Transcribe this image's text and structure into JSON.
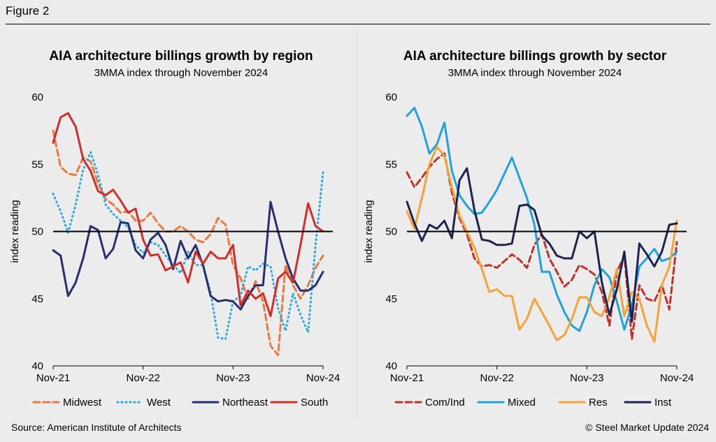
{
  "figure_label": "Figure 2",
  "source": "Source: American Institute of Architects",
  "copyright": "© Steel Market Update 2024",
  "colors": {
    "background": "#ececec",
    "zero_line": "#000000"
  },
  "chart_data": [
    {
      "type": "line",
      "title": "AIA architecture billings growth by region",
      "subtitle": "3MMA index through November 2024",
      "ylabel": "index reading",
      "ylim": [
        40,
        60
      ],
      "yticks": [
        40,
        45,
        50,
        55,
        60
      ],
      "x": [
        "Nov-21",
        "Dec-21",
        "Jan-22",
        "Feb-22",
        "Mar-22",
        "Apr-22",
        "May-22",
        "Jun-22",
        "Jul-22",
        "Aug-22",
        "Sep-22",
        "Oct-22",
        "Nov-22",
        "Dec-22",
        "Jan-23",
        "Feb-23",
        "Mar-23",
        "Apr-23",
        "May-23",
        "Jun-23",
        "Jul-23",
        "Aug-23",
        "Sep-23",
        "Oct-23",
        "Nov-23",
        "Dec-23",
        "Jan-24",
        "Feb-24",
        "Mar-24",
        "Apr-24",
        "May-24",
        "Jun-24",
        "Jul-24",
        "Aug-24",
        "Sep-24",
        "Oct-24",
        "Nov-24"
      ],
      "xtick_labels": [
        "Nov-21",
        "Nov-22",
        "Nov-23",
        "Nov-24"
      ],
      "reference_line": 50,
      "legend_position": "bottom",
      "series": [
        {
          "name": "Midwest",
          "color": "#e87a3c",
          "dash": "dashed",
          "values": [
            57.5,
            54.8,
            54.3,
            54.2,
            55.5,
            55.2,
            53.6,
            52.4,
            52.0,
            51.4,
            51.5,
            50.8,
            50.8,
            51.4,
            50.6,
            50.0,
            50.0,
            50.4,
            50.0,
            49.4,
            49.2,
            49.8,
            51.0,
            50.5,
            47.5,
            46.5,
            45.0,
            46.3,
            44.8,
            41.5,
            40.8,
            47.5,
            46.0,
            45.0,
            46.0,
            47.3,
            48.2
          ]
        },
        {
          "name": "West",
          "color": "#2aa7de",
          "dash": "dotted",
          "values": [
            52.8,
            51.5,
            49.9,
            52.0,
            54.6,
            55.9,
            54.2,
            52.0,
            51.3,
            50.8,
            50.3,
            49.0,
            48.4,
            49.2,
            49.0,
            48.2,
            47.5,
            46.9,
            48.5,
            47.5,
            47.5,
            45.5,
            42.1,
            42.0,
            44.8,
            45.2,
            47.4,
            47.1,
            47.6,
            47.4,
            44.3,
            42.6,
            45.4,
            43.8,
            42.5,
            49.0,
            54.4
          ]
        },
        {
          "name": "Northeast",
          "color": "#252e6e",
          "dash": "solid",
          "values": [
            48.6,
            48.2,
            45.2,
            46.2,
            48.0,
            50.4,
            50.1,
            48.0,
            48.7,
            50.7,
            50.6,
            48.6,
            48.0,
            49.4,
            49.9,
            49.0,
            47.2,
            49.3,
            48.0,
            49.0,
            47.5,
            45.2,
            44.8,
            44.9,
            44.8,
            44.2,
            45.2,
            46.0,
            46.0,
            52.2,
            50.0,
            48.0,
            46.5,
            45.6,
            45.6,
            46.0,
            47.0
          ]
        },
        {
          "name": "South",
          "color": "#d12d2a",
          "dash": "solid",
          "values": [
            56.6,
            58.5,
            58.8,
            57.8,
            55.4,
            54.5,
            53.0,
            52.7,
            53.1,
            52.3,
            51.4,
            51.7,
            49.4,
            48.2,
            48.3,
            47.1,
            47.4,
            47.7,
            46.2,
            48.5,
            47.6,
            48.5,
            48.0,
            48.0,
            49.0,
            44.5,
            45.6,
            45.0,
            45.4,
            43.7,
            46.5,
            47.0,
            46.2,
            49.0,
            52.1,
            50.4,
            50.0
          ]
        }
      ]
    },
    {
      "type": "line",
      "title": "AIA architecture billings growth by sector",
      "subtitle": "3MMA index through November 2024",
      "ylabel": "index reading",
      "ylim": [
        40,
        60
      ],
      "yticks": [
        40,
        45,
        50,
        55,
        60
      ],
      "x": [
        "Nov-21",
        "Dec-21",
        "Jan-22",
        "Feb-22",
        "Mar-22",
        "Apr-22",
        "May-22",
        "Jun-22",
        "Jul-22",
        "Aug-22",
        "Sep-22",
        "Oct-22",
        "Nov-22",
        "Dec-22",
        "Jan-23",
        "Feb-23",
        "Mar-23",
        "Apr-23",
        "May-23",
        "Jun-23",
        "Jul-23",
        "Aug-23",
        "Sep-23",
        "Oct-23",
        "Nov-23",
        "Dec-23",
        "Jan-24",
        "Feb-24",
        "Mar-24",
        "Apr-24",
        "May-24",
        "Jun-24",
        "Jul-24",
        "Aug-24",
        "Sep-24",
        "Oct-24",
        "Nov-24"
      ],
      "xtick_labels": [
        "Nov-21",
        "Nov-22",
        "Nov-23",
        "Nov-24"
      ],
      "reference_line": 50,
      "legend_position": "bottom",
      "series": [
        {
          "name": "Com/Ind",
          "color": "#c0312b",
          "dash": "dashed",
          "values": [
            54.4,
            53.3,
            54.0,
            54.8,
            55.4,
            55.8,
            52.9,
            51.0,
            49.8,
            48.0,
            47.4,
            47.5,
            47.3,
            47.8,
            48.3,
            47.9,
            47.3,
            49.0,
            49.8,
            48.0,
            47.0,
            45.9,
            46.4,
            47.5,
            47.2,
            46.8,
            45.5,
            43.0,
            47.0,
            48.2,
            42.0,
            46.0,
            45.0,
            44.8,
            46.0,
            44.2,
            49.2
          ]
        },
        {
          "name": "Mixed",
          "color": "#1fa2dc",
          "dash": "solid",
          "values": [
            58.6,
            59.2,
            57.8,
            55.8,
            56.5,
            58.1,
            54.5,
            52.7,
            51.9,
            51.3,
            51.4,
            52.2,
            53.1,
            54.3,
            55.5,
            54.0,
            52.5,
            50.5,
            47.0,
            47.0,
            45.3,
            44.0,
            43.0,
            42.6,
            44.0,
            46.0,
            47.2,
            46.6,
            44.8,
            42.7,
            44.5,
            47.4,
            48.0,
            48.7,
            47.8,
            48.0,
            48.5
          ]
        },
        {
          "name": "Res",
          "color": "#f5a236",
          "dash": "solid",
          "values": [
            51.5,
            50.2,
            52.5,
            55.0,
            56.3,
            55.6,
            53.3,
            51.2,
            50.0,
            48.8,
            47.2,
            45.5,
            45.7,
            45.2,
            45.2,
            42.7,
            43.5,
            45.0,
            44.0,
            43.0,
            41.9,
            42.3,
            43.5,
            45.1,
            45.1,
            44.0,
            43.7,
            45.1,
            47.2,
            43.7,
            45.5,
            45.0,
            43.0,
            41.8,
            46.0,
            47.4,
            50.8
          ]
        },
        {
          "name": "Inst",
          "color": "#1d234f",
          "dash": "solid",
          "values": [
            52.2,
            50.6,
            49.3,
            50.5,
            50.2,
            50.8,
            49.5,
            53.8,
            54.7,
            51.6,
            49.4,
            49.3,
            49.0,
            49.0,
            49.1,
            51.9,
            52.0,
            51.6,
            49.7,
            49.1,
            48.2,
            48.0,
            48.0,
            50.0,
            49.5,
            50.0,
            46.2,
            43.8,
            45.7,
            48.5,
            43.3,
            49.1,
            48.3,
            47.4,
            48.5,
            50.5,
            50.6
          ]
        }
      ]
    }
  ]
}
